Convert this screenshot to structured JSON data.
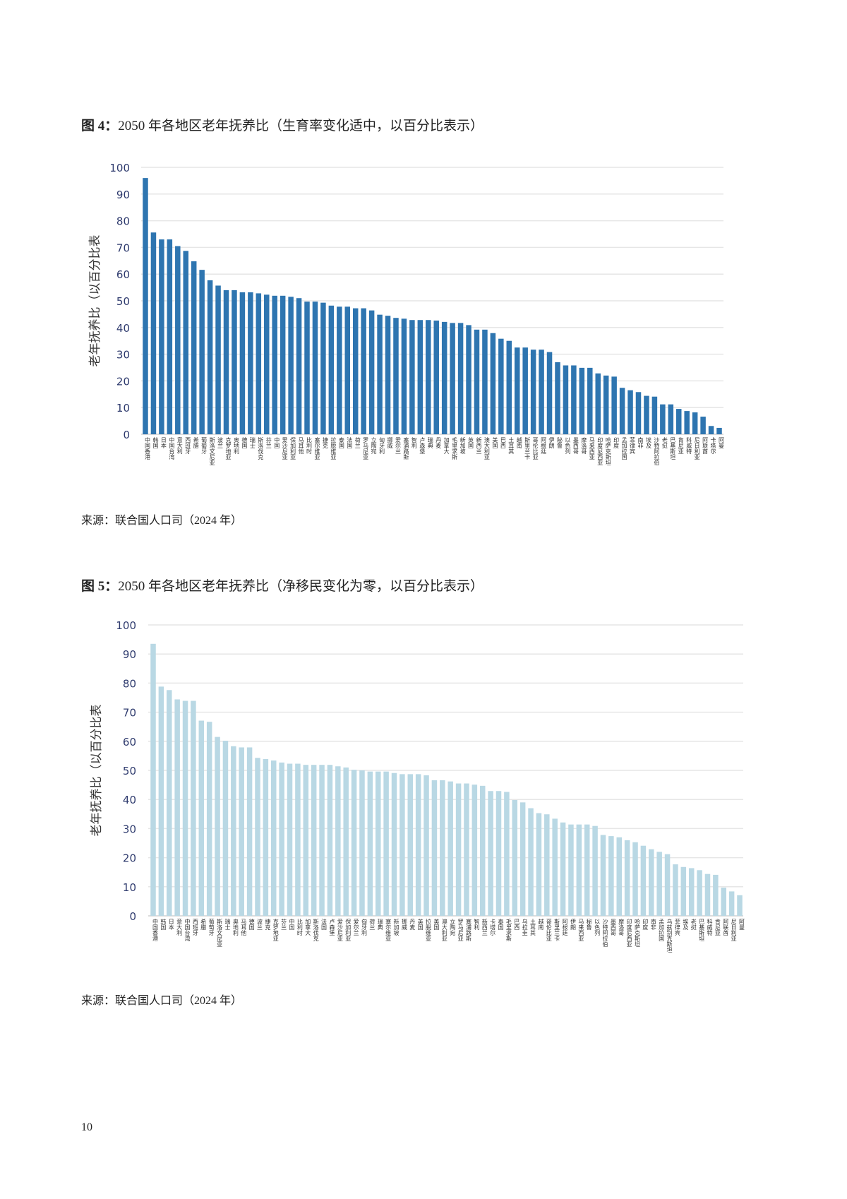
{
  "page_number": "10",
  "figures": [
    {
      "label": "图 4：",
      "title": "2050 年各地区老年抚养比（生育率变化适中，以百分比表示）",
      "source": "来源：联合国人口司（2024 年）"
    },
    {
      "label": "图 5：",
      "title": "2050 年各地区老年抚养比（净移民变化为零，以百分比表示）",
      "source": "来源：联合国人口司（2024 年）"
    }
  ],
  "chart_data": [
    {
      "type": "bar",
      "title": "",
      "ylabel": "老年抚养比（以百分比表",
      "ylim": [
        0,
        100
      ],
      "yticks": [
        "0",
        "10",
        "20",
        "30",
        "40",
        "50",
        "60",
        "70",
        "80",
        "90",
        "100"
      ],
      "grid": true,
      "bar_color": "#2e75b0",
      "categories": [
        "中国香港",
        "韩国",
        "日本",
        "中国台湾",
        "意大利",
        "西班牙",
        "希腊",
        "葡萄牙",
        "斯洛文尼亚",
        "波兰",
        "克罗地亚",
        "奥地利",
        "德国",
        "瑞士",
        "斯洛伐克",
        "芬兰",
        "中国",
        "爱沙尼亚",
        "保加利亚",
        "马耳他",
        "比利时",
        "塞尔维亚",
        "捷克",
        "拉脱维亚",
        "泰国",
        "法国",
        "荷兰",
        "罗马尼亚",
        "立陶宛",
        "匈牙利",
        "挪威",
        "爱尔兰",
        "塞浦路斯",
        "智利",
        "卢森堡",
        "瑞典",
        "丹麦",
        "加拿大",
        "毛里求斯",
        "新加坡",
        "英国",
        "新西兰",
        "澳大利亚",
        "美国",
        "巴西",
        "土耳其",
        "越南",
        "斯里兰卡",
        "哥伦比亚",
        "阿根廷",
        "伊朗",
        "秘鲁",
        "以色列",
        "墨西哥",
        "摩洛哥",
        "马来西亚",
        "印度尼西亚",
        "哈萨克斯坦",
        "印度",
        "孟加拉国",
        "菲律宾",
        "南非",
        "埃及",
        "沙特阿拉伯",
        "老挝",
        "巴基斯坦",
        "肯尼亚",
        "科威特",
        "尼日利亚",
        "阿联酋",
        "卡塔尔",
        "阿曼"
      ],
      "values": [
        96,
        75.6,
        73,
        73,
        70.5,
        68.7,
        64.8,
        61.6,
        57.7,
        55.7,
        54,
        54,
        53.2,
        53.2,
        52.8,
        52.3,
        51.9,
        51.9,
        51.5,
        51,
        49.7,
        49.7,
        49.3,
        48.2,
        47.8,
        47.8,
        47.2,
        47.2,
        46.4,
        44.8,
        44.4,
        43.6,
        43.3,
        42.8,
        42.8,
        42.8,
        42.6,
        42.1,
        41.7,
        41.7,
        40.9,
        39.2,
        39.2,
        37.9,
        35.8,
        35,
        32.5,
        32.5,
        31.7,
        31.7,
        30.8,
        27,
        25.8,
        25.8,
        24.9,
        24.9,
        22.8,
        22,
        21.6,
        17.4,
        16.5,
        15.8,
        14.4,
        14.1,
        11.2,
        11.2,
        9.5,
        8.7,
        8.2,
        6.6,
        3.1,
        2.4
      ]
    },
    {
      "type": "bar",
      "title": "",
      "ylabel": "老年抚养比（以百分比表",
      "ylim": [
        0,
        100
      ],
      "yticks": [
        "0",
        "10",
        "20",
        "30",
        "40",
        "50",
        "60",
        "70",
        "80",
        "90",
        "100"
      ],
      "grid": true,
      "bar_color": "#b9d8e4",
      "categories": [
        "中国香港",
        "韩国",
        "日本",
        "意大利",
        "中国台湾",
        "西班牙",
        "希腊",
        "葡萄牙",
        "斯洛文尼亚",
        "瑞士",
        "奥地利",
        "马耳他",
        "德国",
        "波兰",
        "捷克",
        "克罗地亚",
        "芬兰",
        "中国",
        "比利时",
        "加拿大",
        "斯洛伐克",
        "法国",
        "卢森堡",
        "爱沙尼亚",
        "保加利亚",
        "爱尔兰",
        "匈牙利",
        "荷兰",
        "瑞典",
        "塞尔维亚",
        "新加坡",
        "挪威",
        "丹麦",
        "英国",
        "拉脱维亚",
        "美国",
        "澳大利亚",
        "立陶宛",
        "罗马尼亚",
        "塞浦路斯",
        "智利",
        "新西兰",
        "卡塔尔",
        "泰国",
        "毛里求斯",
        "巴西",
        "乌拉圭",
        "土耳其",
        "越南",
        "哥伦比亚",
        "斯里兰卡",
        "阿根廷",
        "伊朗",
        "马来西亚",
        "秘鲁",
        "以色列",
        "沙特阿拉伯",
        "墨西哥",
        "摩洛哥",
        "印度尼西亚",
        "哈萨克斯坦",
        "印度",
        "南非",
        "孟加拉国",
        "乌兹别克斯坦",
        "菲律宾",
        "埃及",
        "老挝",
        "巴基斯坦",
        "科威特",
        "肯尼亚",
        "阿联酋",
        "尼日利亚",
        "阿曼"
      ],
      "values": [
        93.5,
        78.8,
        77.6,
        74.4,
        73.9,
        73.9,
        67.1,
        66.7,
        61.5,
        60.2,
        58.3,
        57.9,
        57.9,
        54.3,
        53.9,
        53.4,
        52.7,
        52.3,
        52.3,
        51.9,
        51.9,
        51.9,
        51.9,
        51.4,
        51,
        50.2,
        50,
        49.6,
        49.6,
        49.6,
        49.1,
        48.7,
        48.7,
        48.7,
        48.3,
        46.6,
        46.6,
        46.2,
        45.5,
        45.5,
        45.1,
        44.7,
        42.9,
        42.9,
        42.6,
        39.8,
        39,
        37,
        35.3,
        34.9,
        33.4,
        32.1,
        31.4,
        31.4,
        31.4,
        30.9,
        27.8,
        27.4,
        27,
        26,
        25.3,
        24.1,
        22.9,
        22,
        21.2,
        17.7,
        16.8,
        16.4,
        15.7,
        14.4,
        14.1,
        9.7,
        8.4,
        7.1
      ]
    }
  ]
}
